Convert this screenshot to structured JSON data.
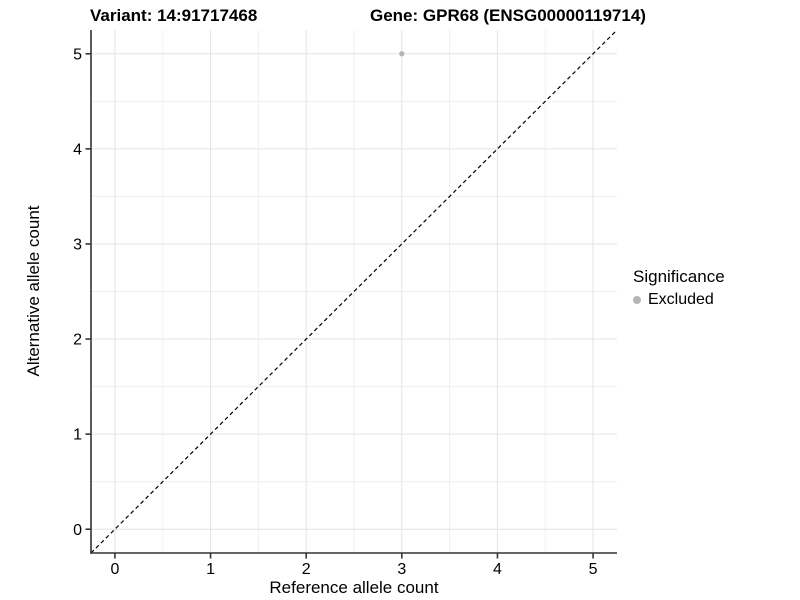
{
  "chart_data": {
    "type": "scatter",
    "title_left": "Variant: 14:91717468",
    "title_right": "Gene: GPR68 (ENSG00000119714)",
    "xlabel": "Reference allele count",
    "ylabel": "Alternative allele count",
    "xlim": [
      -0.25,
      5.25
    ],
    "ylim": [
      -0.25,
      5.25
    ],
    "xticks": [
      0,
      1,
      2,
      3,
      4,
      5
    ],
    "yticks": [
      0,
      1,
      2,
      3,
      4,
      5
    ],
    "xminor": [
      0.5,
      1.5,
      2.5,
      3.5,
      4.5
    ],
    "yminor": [
      0.5,
      1.5,
      2.5,
      3.5,
      4.5
    ],
    "grid": true,
    "legend_position": "right",
    "reference_line": {
      "kind": "identity-diagonal",
      "from": [
        -0.25,
        -0.25
      ],
      "to": [
        5.25,
        5.25
      ],
      "style": "dashed",
      "color": "#000000"
    },
    "series": [
      {
        "name": "Excluded",
        "color": "#b5b5b5",
        "point_radius": 2.6,
        "points": [
          [
            3,
            5
          ]
        ]
      }
    ],
    "legend": {
      "title": "Significance",
      "items": [
        {
          "label": "Excluded",
          "color": "#b5b5b5"
        }
      ]
    },
    "colors": {
      "background": "#ffffff",
      "grid_major": "#e4e4e4",
      "grid_minor": "#f0f0f0",
      "axis_line": "#333333",
      "tick": "#333333",
      "text": "#000000"
    }
  }
}
